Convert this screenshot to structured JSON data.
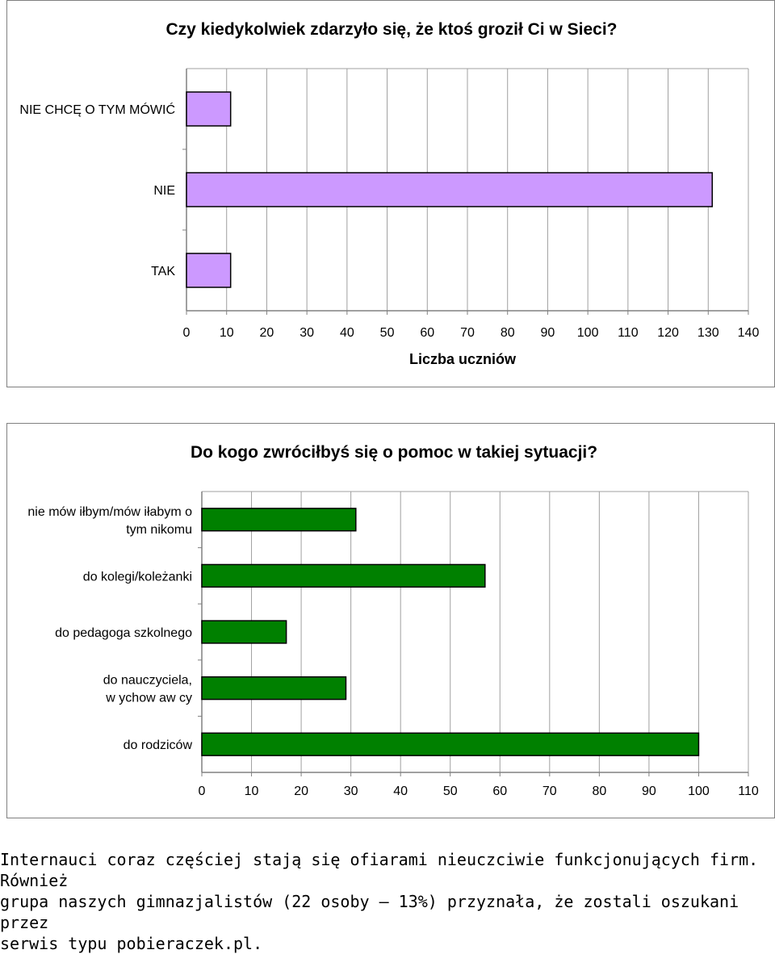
{
  "chart_data": [
    {
      "type": "bar",
      "orientation": "horizontal",
      "title": "Czy kiedykolwiek zdarzyło się, że ktoś groził Ci w Sieci?",
      "xlabel": "Liczba uczniów",
      "categories": [
        "NIE CHCĘ O TYM MÓWIĆ",
        "NIE",
        "TAK"
      ],
      "values": [
        11,
        131,
        11
      ],
      "xlim": [
        0,
        140
      ],
      "xticks": [
        0,
        10,
        20,
        30,
        40,
        50,
        60,
        70,
        80,
        90,
        100,
        110,
        120,
        130,
        140
      ],
      "bar_color": "#cc99ff",
      "grid": true
    },
    {
      "type": "bar",
      "orientation": "horizontal",
      "title": "Do kogo zwróciłbyś się o pomoc w takiej sytuacji?",
      "xlabel": "",
      "categories": [
        "nie mówiłbym/mówiłabym o tym nikomu",
        "do kolegi/koleżanki",
        "do pedagoga szkolnego",
        "do nauczyciela, wychowawcy",
        "do rodziców"
      ],
      "category_lines": [
        [
          "nie mów iłbym/mów iłabym o",
          "tym nikomu"
        ],
        [
          "do kolegi/koleżanki"
        ],
        [
          "do pedagoga szkolnego"
        ],
        [
          "do nauczyciela,",
          "w ychow aw cy"
        ],
        [
          "do rodziców"
        ]
      ],
      "values": [
        31,
        57,
        17,
        29,
        100
      ],
      "xlim": [
        0,
        110
      ],
      "xticks": [
        0,
        10,
        20,
        30,
        40,
        50,
        60,
        70,
        80,
        90,
        100,
        110
      ],
      "bar_color": "#008000",
      "grid": true
    }
  ],
  "footer": {
    "text": "Internauci coraz częściej stają się ofiarami nieuczciwie funkcjonujących firm. Również grupa naszych gimnazjalistów (22 osoby – 13%) przyznała, że zostali oszukani przez serwis typu pobieraczek.pl."
  }
}
